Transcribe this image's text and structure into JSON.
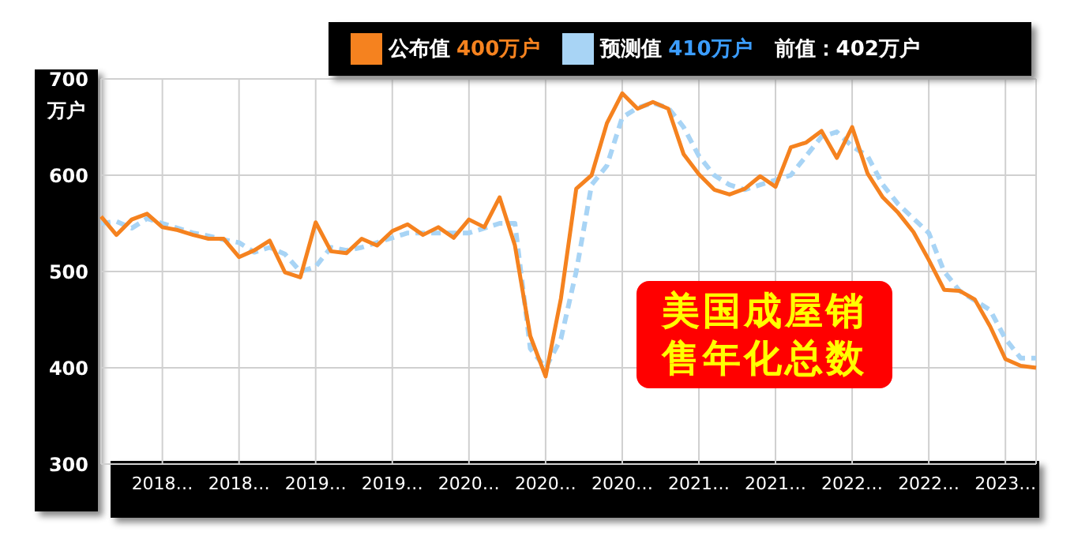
{
  "chart_data": {
    "type": "line",
    "title": "美国成屋销售年化总数",
    "ylabel": "万户",
    "categories": [
      null,
      null,
      null,
      null,
      "2018…",
      null,
      null,
      null,
      null,
      "2018…",
      null,
      null,
      null,
      null,
      "2019…",
      null,
      null,
      null,
      null,
      "2019…",
      null,
      null,
      null,
      null,
      "2020…",
      null,
      null,
      null,
      null,
      "2020…",
      null,
      null,
      null,
      null,
      "2020…",
      null,
      null,
      null,
      null,
      "2021…",
      null,
      null,
      null,
      null,
      "2021…",
      null,
      null,
      null,
      null,
      "2022…",
      null,
      null,
      null,
      null,
      "2022…",
      null,
      null,
      null,
      null,
      "2023…",
      null,
      null
    ],
    "series": [
      {
        "name": "公布值",
        "color": "#f5821f",
        "line_style": "solid",
        "values": [
          557,
          538,
          554,
          560,
          546,
          543,
          538,
          534,
          534,
          515,
          522,
          532,
          499,
          494,
          551,
          521,
          519,
          534,
          527,
          542,
          549,
          538,
          546,
          535,
          554,
          546,
          577,
          527,
          433,
          391,
          472,
          586,
          600,
          654,
          685,
          669,
          676,
          669,
          622,
          601,
          585,
          580,
          586,
          599,
          588,
          629,
          634,
          646,
          618,
          650,
          602,
          577,
          561,
          541,
          512,
          481,
          480,
          471,
          443,
          409,
          402,
          400
        ]
      },
      {
        "name": "预测值",
        "color": "#a8d4f5",
        "line_style": "dashed",
        "values": [
          550,
          552,
          545,
          555,
          550,
          545,
          540,
          537,
          533,
          530,
          520,
          525,
          518,
          500,
          505,
          525,
          522,
          525,
          530,
          535,
          540,
          540,
          540,
          540,
          540,
          545,
          550,
          550,
          420,
          400,
          430,
          500,
          590,
          610,
          660,
          670,
          675,
          670,
          650,
          620,
          600,
          590,
          585,
          590,
          595,
          600,
          620,
          640,
          645,
          630,
          620,
          590,
          570,
          555,
          540,
          500,
          480,
          470,
          460,
          430,
          410,
          410
        ]
      }
    ],
    "annotations": [
      "400万户",
      "410万户",
      "前值：402万户"
    ],
    "ylim": [
      300,
      700
    ],
    "yticks": [
      300,
      400,
      500,
      600,
      700
    ],
    "grid": true,
    "legend": "top",
    "marker": "none"
  }
}
